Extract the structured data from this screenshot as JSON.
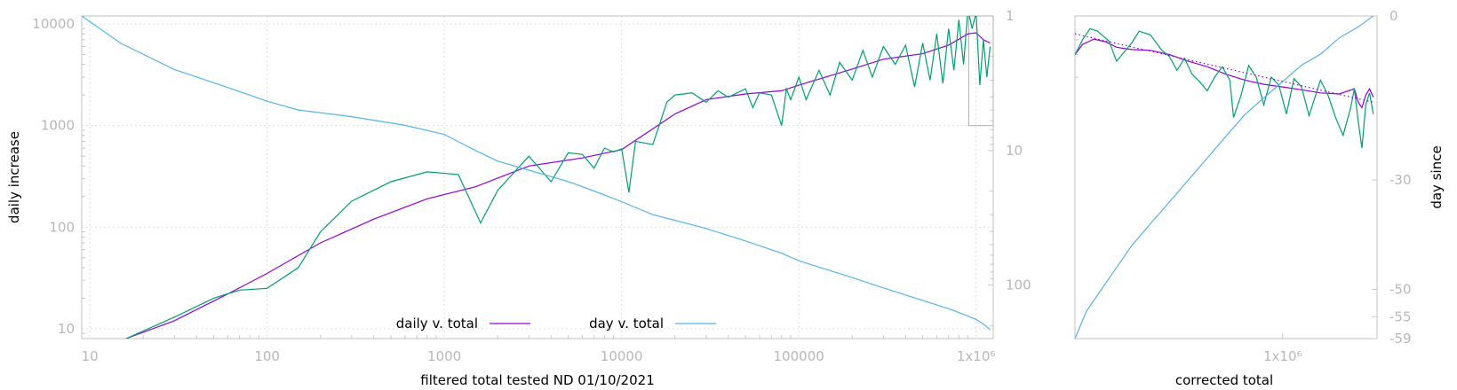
{
  "chart_data": [
    {
      "type": "line",
      "xlabel": "filtered total tested ND 01/10/2021",
      "ylabel": "daily increase",
      "y2label": "",
      "x_scale": "log",
      "y_scale": "log",
      "y2_scale": "log",
      "xlim": [
        9,
        1250000
      ],
      "ylim": [
        8,
        12000
      ],
      "y2lim": [
        1,
        250
      ],
      "y2_reversed": true,
      "grid": true,
      "legend_position": "bottom-center",
      "xticks": [
        {
          "v": 10,
          "label": "10"
        },
        {
          "v": 100,
          "label": "100"
        },
        {
          "v": 1000,
          "label": "1000"
        },
        {
          "v": 10000,
          "label": "10000"
        },
        {
          "v": 100000,
          "label": "100000"
        },
        {
          "v": 1000000,
          "label": "1x10⁶"
        }
      ],
      "yticks": [
        {
          "v": 10,
          "label": "10"
        },
        {
          "v": 100,
          "label": "100"
        },
        {
          "v": 1000,
          "label": "1000"
        },
        {
          "v": 10000,
          "label": "10000"
        }
      ],
      "y2ticks": [
        {
          "v": 1,
          "label": "1"
        },
        {
          "v": 10,
          "label": "10"
        },
        {
          "v": 100,
          "label": "100"
        }
      ],
      "series": [
        {
          "name": "daily v. total",
          "axis": "y",
          "color": "#9400d3",
          "x": [
            16,
            30,
            60,
            100,
            200,
            400,
            800,
            1500,
            3000,
            6000,
            10000,
            20000,
            30000,
            50000,
            80000,
            100000,
            200000,
            300000,
            500000,
            700000,
            900000,
            1000000,
            1100000,
            1200000
          ],
          "y": [
            8,
            12,
            22,
            35,
            70,
            120,
            190,
            250,
            400,
            480,
            580,
            1300,
            1800,
            2050,
            2200,
            2500,
            3600,
            4500,
            5100,
            6200,
            8000,
            8200,
            7000,
            6500
          ]
        },
        {
          "name": "",
          "axis": "y",
          "color": "#009e73",
          "x": [
            16,
            30,
            50,
            70,
            100,
            150,
            200,
            300,
            500,
            800,
            1200,
            1600,
            2000,
            3000,
            4000,
            5000,
            6000,
            7000,
            8000,
            9000,
            10000,
            11000,
            12000,
            15000,
            18000,
            20000,
            25000,
            30000,
            35000,
            40000,
            50000,
            55000,
            60000,
            70000,
            80000,
            85000,
            90000,
            100000,
            110000,
            130000,
            150000,
            170000,
            200000,
            230000,
            260000,
            300000,
            350000,
            400000,
            450000,
            500000,
            550000,
            600000,
            650000,
            700000,
            750000,
            800000,
            850000,
            900000,
            950000,
            1000000,
            1050000,
            1100000,
            1150000,
            1200000
          ],
          "y": [
            8,
            13,
            20,
            24,
            25,
            40,
            90,
            180,
            280,
            350,
            330,
            110,
            230,
            500,
            280,
            540,
            520,
            380,
            600,
            550,
            590,
            220,
            700,
            650,
            1700,
            2000,
            2100,
            1700,
            2200,
            1900,
            2300,
            1500,
            2100,
            2000,
            1000,
            2300,
            1800,
            3000,
            1800,
            3500,
            2000,
            4200,
            2800,
            5500,
            3000,
            6000,
            4000,
            6200,
            2400,
            6500,
            2800,
            8000,
            2600,
            9000,
            3500,
            11000,
            4000,
            14000,
            9000,
            13000,
            2500,
            7000,
            3000,
            6000
          ]
        },
        {
          "name": "day v. total",
          "axis": "y2",
          "color": "#56b4e9",
          "x": [
            9,
            15,
            30,
            60,
            100,
            150,
            300,
            600,
            1000,
            1500,
            2000,
            3000,
            5000,
            7000,
            10000,
            15000,
            20000,
            30000,
            50000,
            80000,
            100000,
            200000,
            300000,
            500000,
            700000,
            900000,
            1000000,
            1100000,
            1200000
          ],
          "y": [
            1,
            1.6,
            2.5,
            3.4,
            4.3,
            5.0,
            5.6,
            6.5,
            7.6,
            10,
            12,
            14,
            17,
            20,
            24,
            30,
            33,
            38,
            47,
            58,
            66,
            88,
            105,
            130,
            150,
            170,
            180,
            195,
            215
          ]
        }
      ]
    },
    {
      "type": "line",
      "xlabel": "corrected total",
      "ylabel": "",
      "y2label": "day since",
      "xlim": [
        450000,
        1250000
      ],
      "y2lim": [
        -59,
        0
      ],
      "grid": false,
      "xticks": [
        {
          "v": 1000000,
          "label": "1x10⁶"
        }
      ],
      "y2ticks": [
        {
          "v": 0,
          "label": "0"
        },
        {
          "v": -30,
          "label": "-30"
        },
        {
          "v": -50,
          "label": "-50"
        },
        {
          "v": -55,
          "label": "-55"
        },
        {
          "v": -59,
          "label": "-59"
        }
      ],
      "series": [
        {
          "name": "",
          "axis": "y",
          "color": "#9400d3",
          "x": [
            450000,
            470000,
            500000,
            530000,
            560000,
            600000,
            650000,
            700000,
            750000,
            800000,
            850000,
            900000,
            950000,
            1000000,
            1050000,
            1100000,
            1150000,
            1190000,
            1200000,
            1210000,
            1220000,
            1230000,
            1240000
          ],
          "y": [
            5000,
            6300,
            7100,
            6700,
            5900,
            5600,
            5500,
            5000,
            4300,
            3800,
            3200,
            2800,
            2550,
            2400,
            2250,
            2100,
            2050,
            2300,
            1700,
            1500,
            2000,
            2300,
            1900
          ]
        },
        {
          "name": "",
          "axis": "y",
          "color": "#009e73",
          "x": [
            450000,
            470000,
            490000,
            510000,
            540000,
            560000,
            600000,
            620000,
            650000,
            680000,
            700000,
            720000,
            740000,
            760000,
            780000,
            800000,
            820000,
            840000,
            860000,
            870000,
            890000,
            910000,
            930000,
            950000,
            970000,
            990000,
            1010000,
            1030000,
            1050000,
            1070000,
            1100000,
            1120000,
            1140000,
            1160000,
            1180000,
            1190000,
            1200000,
            1210000,
            1220000,
            1230000,
            1240000
          ],
          "y": [
            5000,
            7000,
            9000,
            8500,
            6800,
            4300,
            6500,
            8500,
            7800,
            5500,
            4800,
            3500,
            4600,
            3200,
            2700,
            2200,
            3000,
            3800,
            2800,
            1200,
            2000,
            3900,
            3000,
            1600,
            3000,
            2500,
            1300,
            2900,
            2400,
            1250,
            2800,
            2000,
            1200,
            800,
            1500,
            2300,
            1100,
            600,
            1600,
            2100,
            1300
          ]
        },
        {
          "name": "",
          "axis": "y2",
          "color": "#56b4e9",
          "x": [
            450000,
            480000,
            520000,
            560000,
            600000,
            650000,
            700000,
            750000,
            800000,
            850000,
            900000,
            950000,
            1000000,
            1050000,
            1100000,
            1150000,
            1200000,
            1240000
          ],
          "y": [
            -59,
            -54,
            -50,
            -46,
            -42,
            -38,
            -34,
            -30,
            -26,
            -22,
            -18,
            -15,
            -12,
            -9,
            -7,
            -4,
            -2,
            0
          ]
        },
        {
          "name": "",
          "axis": "y",
          "color": "#9400d3",
          "style": "dotted",
          "x": [
            450000,
            1240000
          ],
          "y": [
            8000,
            1700
          ]
        }
      ]
    }
  ],
  "legend": {
    "entries": [
      {
        "label": "daily v. total",
        "color": "#9400d3"
      },
      {
        "label": "day v. total",
        "color": "#56b4e9"
      }
    ]
  }
}
